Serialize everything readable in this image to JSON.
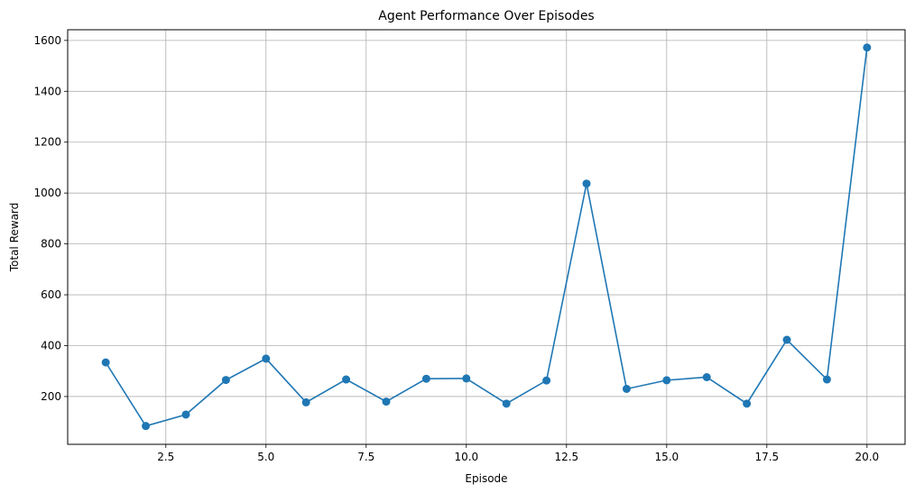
{
  "chart_data": {
    "type": "line",
    "title": "Agent Performance Over Episodes",
    "xlabel": "Episode",
    "ylabel": "Total Reward",
    "xlim": [
      0.05,
      20.95
    ],
    "ylim": [
      12,
      1642
    ],
    "xticks": [
      2.5,
      5.0,
      7.5,
      10.0,
      12.5,
      15.0,
      17.5,
      20.0
    ],
    "xtick_labels": [
      "2.5",
      "5.0",
      "7.5",
      "10.0",
      "12.5",
      "15.0",
      "17.5",
      "20.0"
    ],
    "yticks": [
      200,
      400,
      600,
      800,
      1000,
      1200,
      1400,
      1600
    ],
    "ytick_labels": [
      "200",
      "400",
      "600",
      "800",
      "1000",
      "1200",
      "1400",
      "1600"
    ],
    "grid": true,
    "marker": "circle",
    "color": "#1f77b4",
    "series": [
      {
        "x": [
          1,
          2,
          3,
          4,
          5,
          6,
          7,
          8,
          9,
          10,
          11,
          12,
          13,
          14,
          15,
          16,
          17,
          18,
          19,
          20
        ],
        "values": [
          334,
          84,
          129,
          265,
          349,
          177,
          267,
          180,
          270,
          271,
          172,
          263,
          1037,
          230,
          264,
          276,
          172,
          423,
          267,
          1572
        ]
      }
    ]
  }
}
